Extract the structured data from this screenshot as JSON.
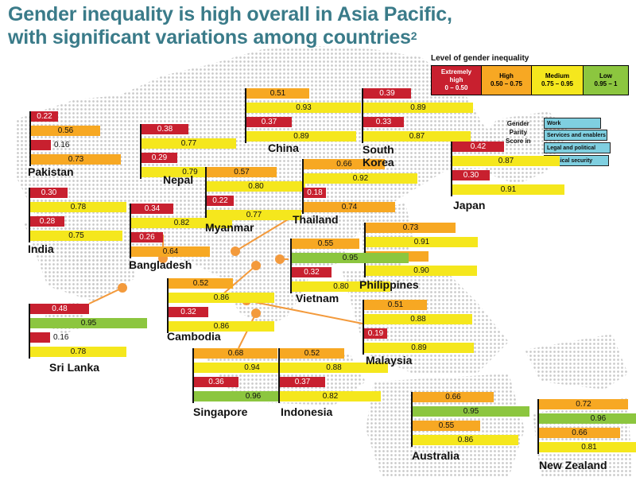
{
  "title": {
    "line1": "Gender inequality is high overall in Asia Pacific,",
    "line2": "with significant variations among countries",
    "superscript": "2"
  },
  "legend": {
    "title": "Level of gender inequality",
    "items": [
      {
        "name": "Extremely high",
        "line1": "Extremely",
        "line2": "high",
        "range": "0 – 0.50",
        "color": "#c8202f"
      },
      {
        "name": "High",
        "line1": "High",
        "line2": "",
        "range": "0.50 – 0.75",
        "color": "#f7a823"
      },
      {
        "name": "Medium",
        "line1": "Medium",
        "line2": "",
        "range": "0.75 – 0.95",
        "color": "#f5e71d"
      },
      {
        "name": "Low",
        "line1": "Low",
        "line2": "",
        "range": "0.95 – 1",
        "color": "#8cc63f"
      }
    ]
  },
  "gender_parity": {
    "title": [
      "Gender",
      "Parity",
      "Score in"
    ],
    "color": "#7fcfe0",
    "items": [
      "Work",
      "Services and enablers",
      "Legal and political",
      "Physical security"
    ]
  },
  "chart_data": {
    "type": "bar",
    "title": "Gender inequality is high overall in Asia Pacific, with significant variations among countries",
    "categories": [
      "Work",
      "Services and enablers",
      "Legal and political",
      "Physical security"
    ],
    "scale_max": 1,
    "thresholds": [
      0.5,
      0.75,
      0.95,
      1
    ],
    "countries": [
      {
        "name": "Pakistan",
        "values": [
          0.22,
          0.56,
          0.16,
          0.73
        ]
      },
      {
        "name": "Nepal",
        "values": [
          0.38,
          0.77,
          0.29,
          0.79
        ]
      },
      {
        "name": "China",
        "values": [
          0.51,
          0.93,
          0.37,
          0.89
        ]
      },
      {
        "name": "South Korea",
        "values": [
          0.39,
          0.89,
          0.33,
          0.87
        ]
      },
      {
        "name": "Japan",
        "values": [
          0.42,
          0.87,
          0.3,
          0.91
        ]
      },
      {
        "name": "India",
        "values": [
          0.3,
          0.78,
          0.28,
          0.75
        ]
      },
      {
        "name": "Myanmar",
        "values": [
          0.57,
          0.8,
          0.22,
          0.77
        ]
      },
      {
        "name": "Thailand",
        "values": [
          0.66,
          0.92,
          0.18,
          0.74
        ]
      },
      {
        "name": "Bangladesh",
        "values": [
          0.34,
          0.82,
          0.26,
          0.64
        ]
      },
      {
        "name": "Philippines",
        "values": [
          0.73,
          0.91,
          0.51,
          0.9
        ]
      },
      {
        "name": "Vietnam",
        "values": [
          0.55,
          0.95,
          0.32,
          0.8
        ]
      },
      {
        "name": "Cambodia",
        "values": [
          0.52,
          0.86,
          0.32,
          0.86
        ]
      },
      {
        "name": "Malaysia",
        "values": [
          0.51,
          0.88,
          0.19,
          0.89
        ]
      },
      {
        "name": "Sri Lanka",
        "values": [
          0.48,
          0.95,
          0.16,
          0.78
        ]
      },
      {
        "name": "Singapore",
        "values": [
          0.68,
          0.94,
          0.36,
          0.96
        ]
      },
      {
        "name": "Indonesia",
        "values": [
          0.52,
          0.88,
          0.37,
          0.82
        ]
      },
      {
        "name": "Australia",
        "values": [
          0.66,
          0.95,
          0.55,
          0.86
        ]
      },
      {
        "name": "New Zealand",
        "values": [
          0.72,
          0.96,
          0.66,
          0.81
        ]
      }
    ]
  }
}
